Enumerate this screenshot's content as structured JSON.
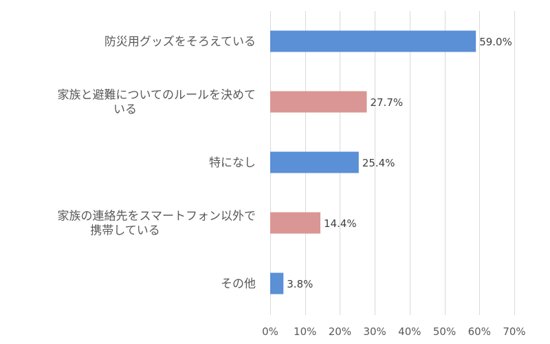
{
  "chart_data": {
    "type": "bar",
    "orientation": "horizontal",
    "categories": [
      [
        "防災用グッズをそろえている"
      ],
      [
        "家族と避難についてのルールを決めて",
        "いる"
      ],
      [
        "特になし"
      ],
      [
        "家族の連絡先をスマートフォン以外で",
        "携帯している"
      ],
      [
        "その他"
      ]
    ],
    "values": [
      59.0,
      27.7,
      25.4,
      14.4,
      3.8
    ],
    "value_labels": [
      "59.0%",
      "27.7%",
      "25.4%",
      "14.4%",
      "3.8%"
    ],
    "bar_colors": [
      "#5B8FD6",
      "#DA9694",
      "#5B8FD6",
      "#DA9694",
      "#5B8FD6"
    ],
    "xlim": [
      0,
      70
    ],
    "xticks": [
      0,
      10,
      20,
      30,
      40,
      50,
      60,
      70
    ],
    "xtick_labels": [
      "0%",
      "10%",
      "20%",
      "30%",
      "40%",
      "50%",
      "60%",
      "70%"
    ],
    "grid": true,
    "title": "",
    "xlabel": "",
    "ylabel": ""
  }
}
